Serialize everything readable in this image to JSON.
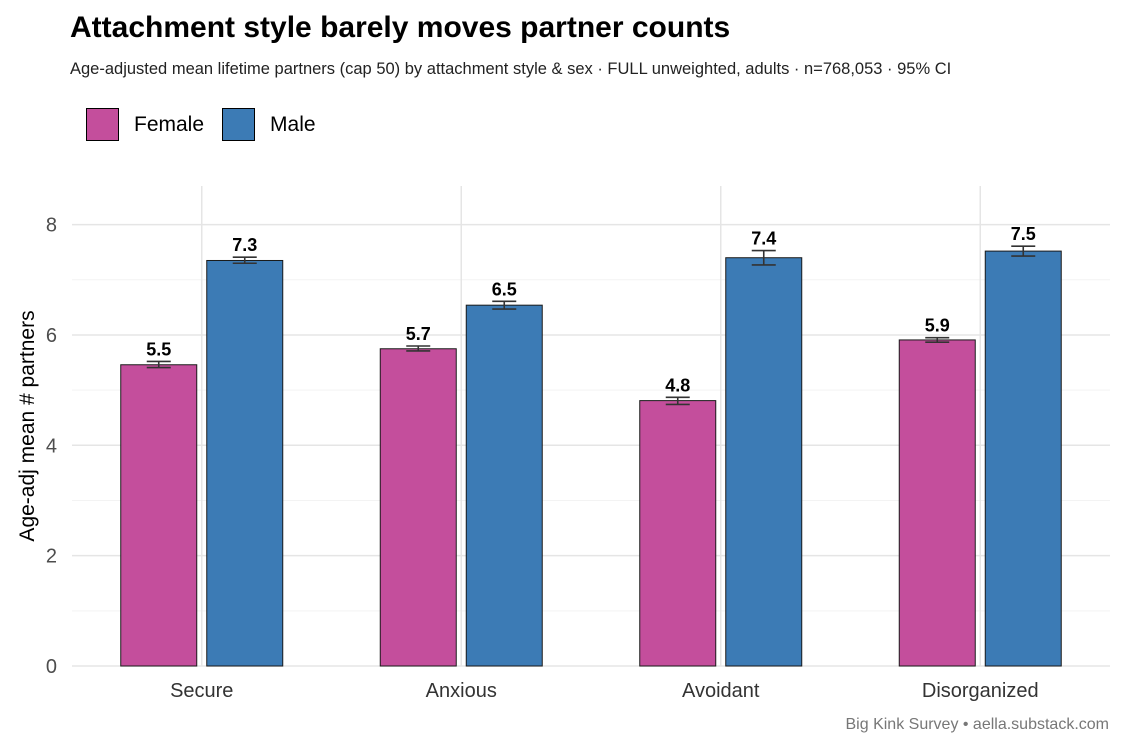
{
  "chart_data": {
    "type": "bar",
    "title": "Attachment style barely moves partner counts",
    "subtitle": "Age-adjusted mean lifetime partners (cap 50) by attachment style & sex · FULL unweighted, adults · n=768,053 · 95% CI",
    "xlabel": "",
    "ylabel": "Age-adj mean # partners",
    "ylim": [
      0,
      8.7
    ],
    "yticks": [
      0,
      2,
      4,
      6,
      8
    ],
    "grid": true,
    "legend_position": "top-left",
    "categories": [
      "Secure",
      "Anxious",
      "Avoidant",
      "Disorganized"
    ],
    "series": [
      {
        "name": "Female",
        "color": "#C44E9C",
        "values": [
          5.46,
          5.75,
          4.81,
          5.91
        ],
        "labels": [
          "5.5",
          "5.7",
          "4.8",
          "5.9"
        ],
        "ci_low": [
          5.41,
          5.71,
          4.74,
          5.87
        ],
        "ci_high": [
          5.52,
          5.8,
          4.87,
          5.95
        ]
      },
      {
        "name": "Male",
        "color": "#3C7BB5",
        "values": [
          7.35,
          6.54,
          7.4,
          7.52
        ],
        "labels": [
          "7.3",
          "6.5",
          "7.4",
          "7.5"
        ],
        "ci_low": [
          7.3,
          6.47,
          7.27,
          7.43
        ],
        "ci_high": [
          7.41,
          6.61,
          7.53,
          7.61
        ]
      }
    ],
    "caption": "Big Kink Survey  •  aella.substack.com"
  }
}
